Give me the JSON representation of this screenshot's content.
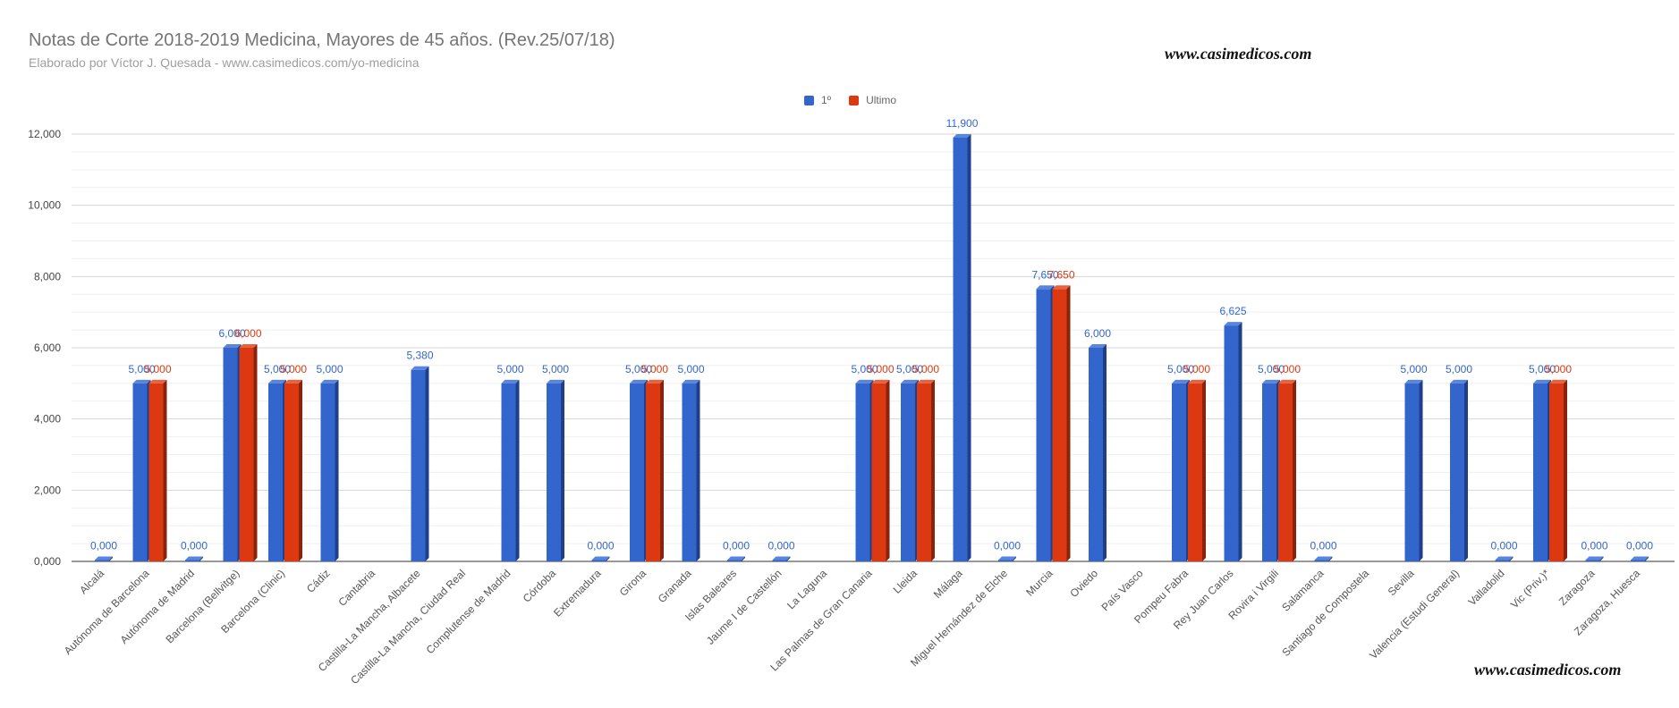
{
  "chart_data": {
    "type": "bar",
    "title": "Notas de Corte 2018-2019 Medicina, Mayores de 45 años. (Rev.25/07/18)",
    "subtitle": "Elaborado por Víctor J. Quesada - www.casimedicos.com/yo-medicina",
    "xlabel": "",
    "ylabel": "",
    "ylim": [
      0,
      12000
    ],
    "yticks": [
      0,
      2000,
      4000,
      6000,
      8000,
      10000,
      12000
    ],
    "ytick_labels": [
      "0,000",
      "2,000",
      "4,000",
      "6,000",
      "8,000",
      "10,000",
      "12,000"
    ],
    "legend_position": "top-center",
    "categories": [
      "Alcalá",
      "Autónoma de Barcelona",
      "Autónoma de Madrid",
      "Barcelona (Bellvitge)",
      "Barcelona (Clinic)",
      "Cádiz",
      "Cantabria",
      "Castilla-La Mancha, Albacete",
      "Castilla-La Mancha, Ciudad Real",
      "Complutense de Madrid",
      "Córdoba",
      "Extremadura",
      "Girona",
      "Granada",
      "Islas Baleares",
      "Jaume I de Castellón",
      "La Laguna",
      "Las Palmas de Gran Canaria",
      "Lleida",
      "Málaga",
      "Miguel Hernández de Elche",
      "Murcia",
      "Oviedo",
      "País Vasco",
      "Pompeu Fabra",
      "Rey Juan Carlos",
      "Rovira i Virgili",
      "Salamanca",
      "Santiago de Compostela",
      "Sevilla",
      "Valencia (Estudi General)",
      "Valladolid",
      "Vic (Priv.)*",
      "Zaragoza",
      "Zaragoza, Huesca"
    ],
    "series": [
      {
        "name": "1º",
        "color": "#3366cc",
        "values": [
          0,
          5000,
          0,
          6000,
          5000,
          5000,
          null,
          5380,
          null,
          5000,
          5000,
          0,
          5000,
          5000,
          0,
          0,
          null,
          5000,
          5000,
          11900,
          0,
          7650,
          6000,
          null,
          5000,
          6625,
          5000,
          0,
          null,
          5000,
          5000,
          0,
          5000,
          0,
          0
        ],
        "data_labels": [
          "0,000",
          "5,000",
          "0,000",
          "6,000",
          "5,000",
          "5,000",
          "",
          "5,380",
          "",
          "5,000",
          "5,000",
          "0,000",
          "5,000",
          "5,000",
          "0,000",
          "0,000",
          "",
          "5,000",
          "5,000",
          "11,900",
          "0,000",
          "7,650",
          "6,000",
          "",
          "5,000",
          "6,625",
          "5,000",
          "0,000",
          "",
          "5,000",
          "5,000",
          "0,000",
          "5,000",
          "0,000",
          "0,000"
        ]
      },
      {
        "name": "Ultimo",
        "color": "#dc3912",
        "values": [
          null,
          5000,
          null,
          6000,
          5000,
          null,
          null,
          null,
          null,
          null,
          null,
          null,
          5000,
          null,
          null,
          null,
          null,
          5000,
          5000,
          null,
          null,
          7650,
          null,
          null,
          5000,
          null,
          5000,
          null,
          null,
          null,
          null,
          null,
          5000,
          null,
          null
        ],
        "data_labels": [
          "",
          "5,000",
          "",
          "6,000",
          "5,000",
          "",
          "",
          "",
          "",
          "",
          "",
          "",
          "5,000",
          "",
          "",
          "",
          "",
          "5,000",
          "5,000",
          "",
          "",
          "7,650",
          "",
          "",
          "5,000",
          "",
          "5,000",
          "",
          "",
          "",
          "",
          "",
          "5,000",
          "",
          ""
        ]
      }
    ]
  },
  "watermark": {
    "top": "www.casimedicos.com",
    "bottom": "www.casimedicos.com"
  }
}
